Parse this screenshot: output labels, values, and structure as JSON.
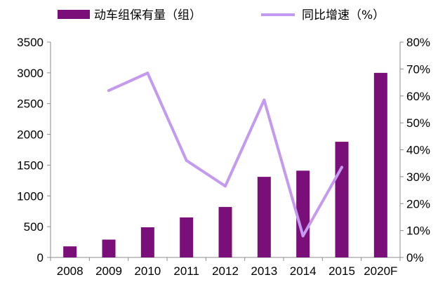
{
  "chart_data": {
    "type": "bar",
    "categories": [
      "2008",
      "2009",
      "2010",
      "2011",
      "2012",
      "2013",
      "2014",
      "2015",
      "2020F"
    ],
    "series": [
      {
        "name": "动车组保有量（组）",
        "type": "bar",
        "axis": "left",
        "color": "#7b0f7a",
        "values": [
          180,
          290,
          490,
          650,
          820,
          1310,
          1410,
          1880,
          3000
        ]
      },
      {
        "name": "同比增速（%）",
        "type": "line",
        "axis": "right",
        "color": "#c49af0",
        "values": [
          null,
          62,
          68.5,
          36,
          26.5,
          58.5,
          8,
          33.5,
          null
        ]
      }
    ],
    "y_left": {
      "range": [
        0,
        3500
      ],
      "ticks": [
        "0",
        "500",
        "1000",
        "1500",
        "2000",
        "2500",
        "3000",
        "3500"
      ]
    },
    "y_right": {
      "range": [
        0,
        80
      ],
      "ticks": [
        "0%",
        "10%",
        "20%",
        "30%",
        "40%",
        "50%",
        "60%",
        "70%",
        "80%"
      ]
    },
    "grid": false,
    "legend_position": "top"
  }
}
